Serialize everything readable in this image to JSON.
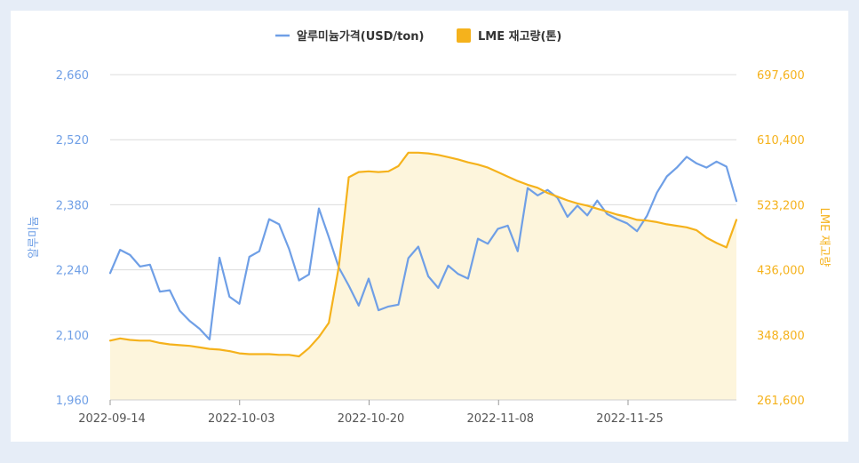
{
  "chart_data": {
    "type": "line",
    "legend": {
      "position": "top-center",
      "items": [
        {
          "label": "알루미늄가격(USD/ton)",
          "color": "#6f9fe6",
          "kind": "line"
        },
        {
          "label": "LME 재고량(톤)",
          "color": "#f5b21c",
          "kind": "area"
        }
      ]
    },
    "y_left": {
      "label": "알루미늄",
      "ticks": [
        "2,660",
        "2,520",
        "2,380",
        "2,240",
        "2,100",
        "1,960"
      ],
      "range": [
        1960,
        2660
      ]
    },
    "y_right": {
      "label": "LME 재고량",
      "ticks": [
        "697,600",
        "610,400",
        "523,200",
        "436,000",
        "348,800",
        "261,600"
      ],
      "range": [
        261600,
        697600
      ]
    },
    "x_ticks": [
      "2022-09-14",
      "2022-10-03",
      "2022-10-20",
      "2022-11-08",
      "2022-11-25"
    ],
    "grid": true,
    "series": [
      {
        "name": "알루미늄가격(USD/ton)",
        "axis": "left",
        "color": "#6f9fe6",
        "values": [
          2233,
          2283,
          2272,
          2247,
          2251,
          2193,
          2196,
          2152,
          2130,
          2113,
          2090,
          2266,
          2182,
          2167,
          2268,
          2280,
          2349,
          2338,
          2285,
          2217,
          2230,
          2372,
          2310,
          2245,
          2206,
          2163,
          2221,
          2153,
          2161,
          2165,
          2265,
          2290,
          2226,
          2201,
          2249,
          2231,
          2221,
          2307,
          2296,
          2328,
          2335,
          2280,
          2416,
          2400,
          2412,
          2395,
          2354,
          2378,
          2357,
          2389,
          2360,
          2349,
          2340,
          2323,
          2356,
          2406,
          2441,
          2460,
          2483,
          2469,
          2460,
          2473,
          2462,
          2388
        ]
      },
      {
        "name": "LME 재고량(톤)",
        "axis": "right",
        "color": "#f5b21c",
        "fill": "#fdf5dc",
        "values": [
          341000,
          344000,
          342000,
          341000,
          341000,
          338000,
          336000,
          335000,
          334000,
          332000,
          330000,
          329000,
          327000,
          324000,
          323000,
          323000,
          323000,
          322000,
          322000,
          320000,
          331000,
          346000,
          365000,
          440000,
          560000,
          567000,
          568000,
          567000,
          568000,
          575000,
          593000,
          593000,
          592000,
          590000,
          587000,
          584000,
          580000,
          577000,
          573000,
          567000,
          561000,
          555000,
          550000,
          546000,
          539000,
          534000,
          529000,
          525000,
          522000,
          518000,
          514000,
          510000,
          507000,
          503000,
          502000,
          500000,
          497000,
          495000,
          493000,
          489000,
          479000,
          472000,
          466000,
          503000
        ]
      }
    ]
  }
}
